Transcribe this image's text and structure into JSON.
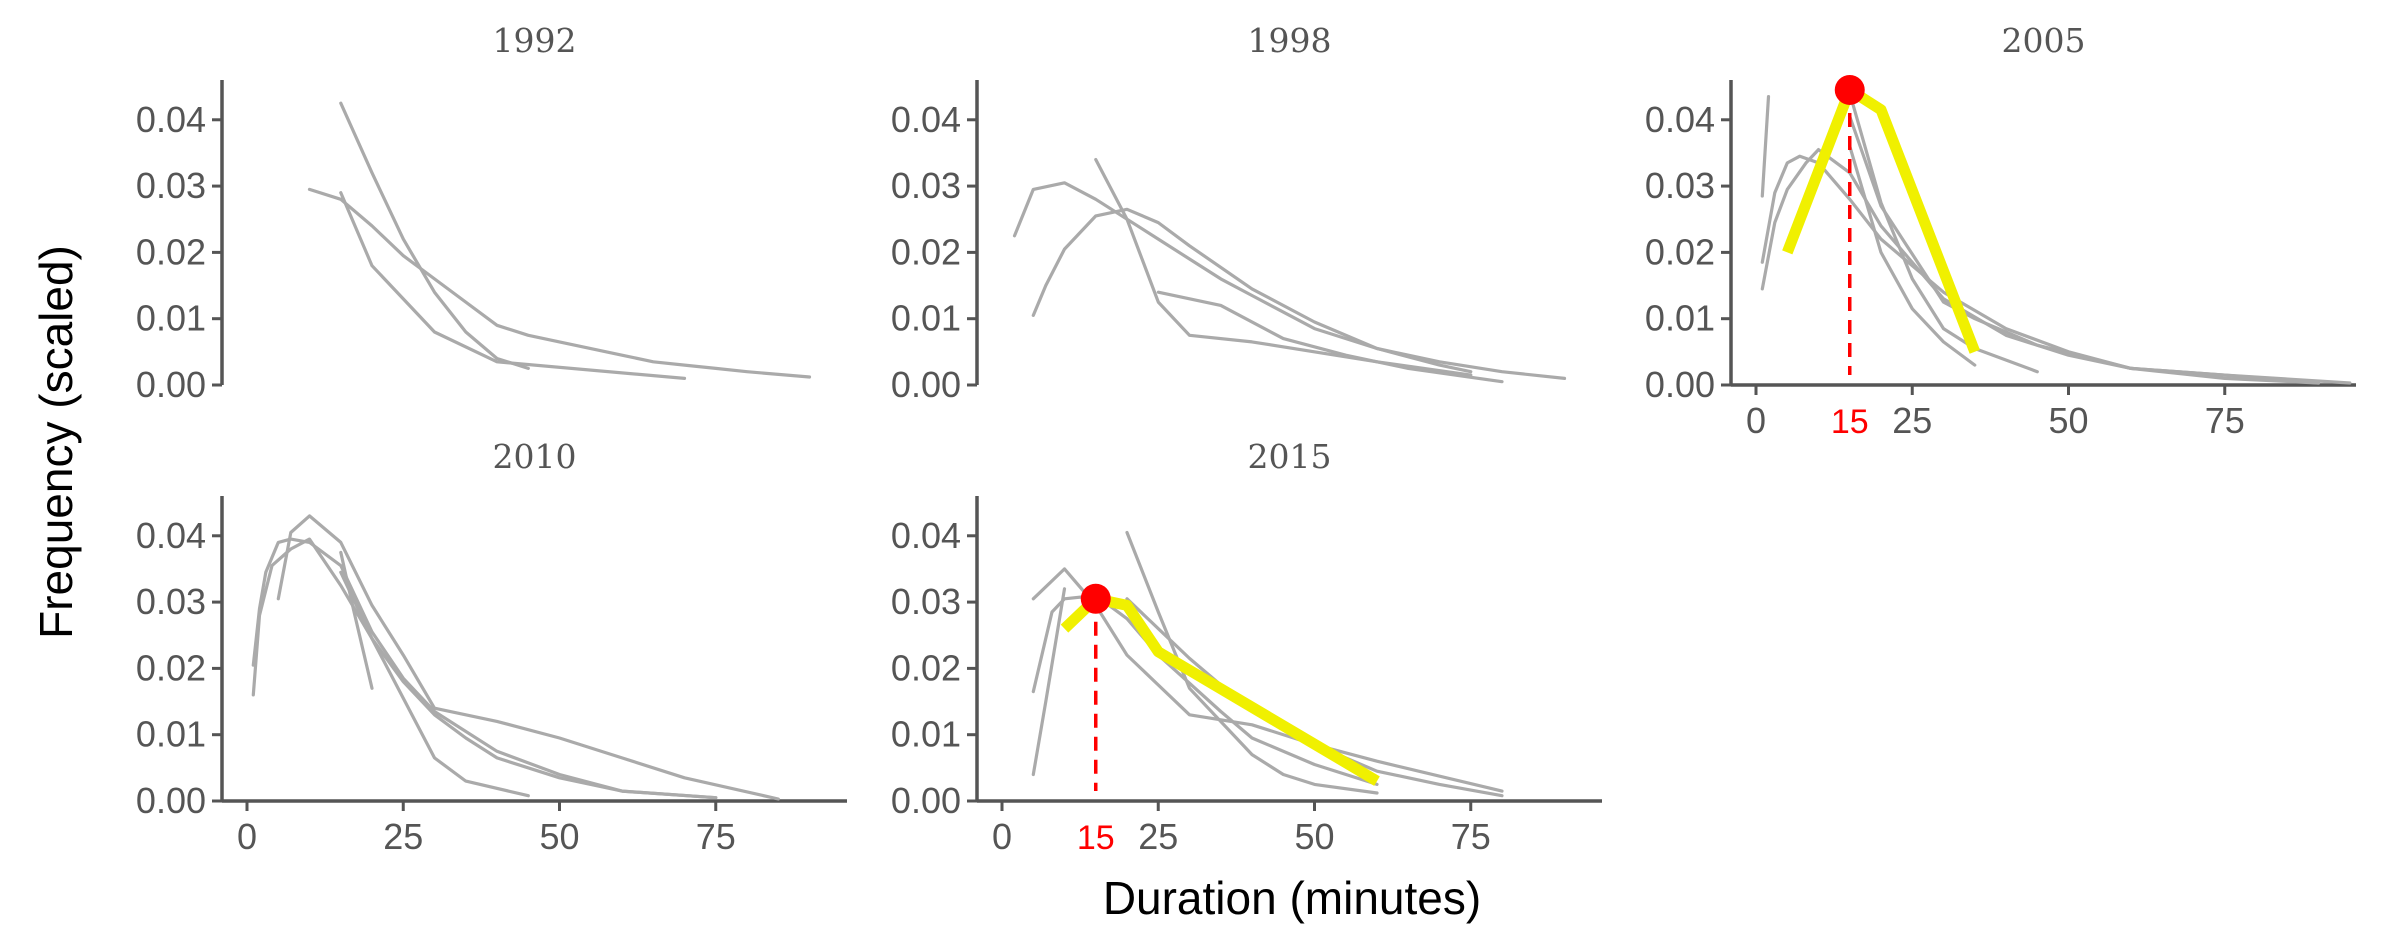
{
  "chart_data": {
    "type": "line",
    "xlabel": "Duration (minutes)",
    "ylabel": "Frequency (scaled)",
    "ylim": [
      0,
      0.045
    ],
    "yticks": [
      0.0,
      0.01,
      0.02,
      0.03,
      0.04
    ],
    "ytick_labels": [
      "0.00",
      "0.01",
      "0.02",
      "0.03",
      "0.04"
    ],
    "xticks": [
      0,
      25,
      50,
      75
    ],
    "xtick_labels": [
      "0",
      "25",
      "50",
      "75"
    ],
    "grid": false,
    "line_color": "#aaaaaa",
    "highlight_color": "#f0f000",
    "marker_color": "#ff0000",
    "facets": [
      {
        "title": "1992",
        "show_x_axis": false,
        "series": [
          {
            "x": [
              15,
              20,
              25,
              30,
              35,
              40,
              45
            ],
            "y": [
              0.0425,
              0.032,
              0.022,
              0.014,
              0.008,
              0.004,
              0.0025
            ]
          },
          {
            "x": [
              10,
              15,
              20,
              25,
              30,
              35,
              40,
              45,
              50,
              60,
              65,
              70,
              75,
              80,
              90
            ],
            "y": [
              0.0295,
              0.028,
              0.024,
              0.0195,
              0.016,
              0.0125,
              0.009,
              0.0075,
              0.0065,
              0.0045,
              0.0035,
              0.003,
              0.0025,
              0.002,
              0.0012
            ]
          },
          {
            "x": [
              15,
              20,
              30,
              40,
              70
            ],
            "y": [
              0.029,
              0.018,
              0.008,
              0.0035,
              0.001
            ]
          }
        ]
      },
      {
        "title": "1998",
        "show_x_axis": false,
        "series": [
          {
            "x": [
              2,
              5,
              10,
              15,
              20,
              25,
              30,
              35,
              40,
              45,
              50,
              60,
              70,
              80,
              90
            ],
            "y": [
              0.0225,
              0.0295,
              0.0305,
              0.028,
              0.025,
              0.022,
              0.019,
              0.016,
              0.0135,
              0.011,
              0.0085,
              0.0055,
              0.0035,
              0.002,
              0.001
            ]
          },
          {
            "x": [
              5,
              7,
              10,
              15,
              20,
              25,
              30,
              40,
              50,
              60,
              70,
              75
            ],
            "y": [
              0.0105,
              0.015,
              0.0205,
              0.0255,
              0.0265,
              0.0245,
              0.021,
              0.0145,
              0.0095,
              0.0055,
              0.003,
              0.002
            ]
          },
          {
            "x": [
              15,
              20,
              25,
              30,
              40,
              60,
              75
            ],
            "y": [
              0.034,
              0.025,
              0.0125,
              0.0075,
              0.0065,
              0.0035,
              0.0015
            ]
          },
          {
            "x": [
              25,
              35,
              45,
              55,
              65,
              80
            ],
            "y": [
              0.014,
              0.012,
              0.007,
              0.0045,
              0.0025,
              0.0005
            ]
          }
        ]
      },
      {
        "title": "2005",
        "show_x_axis": true,
        "marker": {
          "x": 15,
          "y": 0.0445,
          "label": "15"
        },
        "series": [
          {
            "x": [
              1,
              2
            ],
            "y": [
              0.0285,
              0.0435
            ]
          },
          {
            "x": [
              1,
              3,
              5,
              7,
              10,
              15,
              20,
              30,
              40,
              50,
              60,
              75,
              90
            ],
            "y": [
              0.0185,
              0.029,
              0.0335,
              0.0345,
              0.0335,
              0.028,
              0.022,
              0.014,
              0.0085,
              0.005,
              0.0025,
              0.001,
              0.0003
            ]
          },
          {
            "x": [
              1,
              3,
              5,
              8,
              10,
              15,
              20,
              30,
              40,
              50,
              60,
              75,
              95
            ],
            "y": [
              0.0145,
              0.0245,
              0.0295,
              0.0335,
              0.0355,
              0.032,
              0.024,
              0.013,
              0.0075,
              0.0045,
              0.0025,
              0.0015,
              0.0003
            ]
          },
          {
            "x": [
              15,
              20,
              25,
              30,
              35
            ],
            "y": [
              0.036,
              0.02,
              0.0115,
              0.0065,
              0.003
            ]
          },
          {
            "x": [
              15,
              20,
              25,
              30,
              35,
              45
            ],
            "y": [
              0.044,
              0.0275,
              0.016,
              0.0085,
              0.0055,
              0.002
            ]
          },
          {
            "x": [
              15,
              20,
              30,
              35,
              45,
              60,
              75,
              90
            ],
            "y": [
              0.0405,
              0.027,
              0.0125,
              0.01,
              0.006,
              0.0025,
              0.0015,
              0.0003
            ]
          }
        ],
        "highlight": {
          "x": [
            5,
            15,
            20,
            35
          ],
          "y": [
            0.02,
            0.0445,
            0.0415,
            0.005
          ]
        }
      },
      {
        "title": "2010",
        "show_x_axis": true,
        "series": [
          {
            "x": [
              1,
              2,
              3,
              5,
              7,
              10,
              15,
              20,
              25,
              30,
              40,
              50,
              60,
              75
            ],
            "y": [
              0.0205,
              0.029,
              0.0345,
              0.039,
              0.0395,
              0.039,
              0.0355,
              0.0255,
              0.0185,
              0.0135,
              0.0075,
              0.004,
              0.0015,
              0.0005
            ]
          },
          {
            "x": [
              1,
              2,
              4,
              7,
              10,
              15,
              20,
              25,
              30,
              35,
              40,
              50,
              60,
              75
            ],
            "y": [
              0.016,
              0.028,
              0.0355,
              0.038,
              0.0395,
              0.0325,
              0.0245,
              0.018,
              0.013,
              0.0095,
              0.0065,
              0.0035,
              0.0015,
              0.0005
            ]
          },
          {
            "x": [
              5,
              7,
              10,
              15,
              20,
              25,
              30,
              40,
              50,
              60,
              70,
              85
            ],
            "y": [
              0.0305,
              0.0405,
              0.043,
              0.039,
              0.0295,
              0.022,
              0.014,
              0.012,
              0.0095,
              0.0065,
              0.0035,
              0.0003
            ]
          },
          {
            "x": [
              15,
              17,
              20
            ],
            "y": [
              0.0375,
              0.029,
              0.017
            ]
          },
          {
            "x": [
              15,
              20,
              25,
              30,
              35,
              45
            ],
            "y": [
              0.0345,
              0.0245,
              0.0155,
              0.0065,
              0.003,
              0.0008
            ]
          }
        ]
      },
      {
        "title": "2015",
        "show_x_axis": true,
        "marker": {
          "x": 15,
          "y": 0.0305,
          "label": "15"
        },
        "series": [
          {
            "x": [
              5,
              10,
              15,
              20,
              25,
              30,
              40,
              50,
              60,
              80
            ],
            "y": [
              0.0305,
              0.035,
              0.0295,
              0.022,
              0.0175,
              0.013,
              0.0115,
              0.0085,
              0.006,
              0.0015
            ]
          },
          {
            "x": [
              5,
              8,
              10,
              15,
              20,
              25,
              35,
              40,
              50,
              60
            ],
            "y": [
              0.0165,
              0.0285,
              0.0305,
              0.031,
              0.0275,
              0.022,
              0.0135,
              0.0095,
              0.0055,
              0.0025
            ]
          },
          {
            "x": [
              5,
              7,
              10
            ],
            "y": [
              0.004,
              0.015,
              0.032
            ]
          },
          {
            "x": [
              20,
              25,
              30,
              40,
              45,
              50,
              60
            ],
            "y": [
              0.0405,
              0.0285,
              0.017,
              0.007,
              0.004,
              0.0025,
              0.0012
            ]
          },
          {
            "x": [
              20,
              30,
              40,
              50,
              60,
              70,
              80
            ],
            "y": [
              0.0305,
              0.0215,
              0.0135,
              0.0085,
              0.0045,
              0.0025,
              0.0008
            ]
          }
        ],
        "highlight": {
          "x": [
            10,
            15,
            20,
            25,
            60
          ],
          "y": [
            0.026,
            0.0305,
            0.0295,
            0.0225,
            0.003
          ]
        }
      }
    ]
  }
}
